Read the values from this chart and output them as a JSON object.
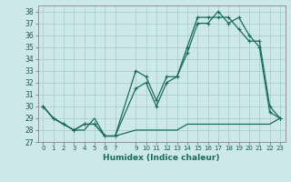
{
  "xlabel": "Humidex (Indice chaleur)",
  "background_color": "#cce8e8",
  "grid_color": "#aacece",
  "line_color": "#1a6b5a",
  "xlim": [
    -0.5,
    23.5
  ],
  "ylim": [
    27,
    38.5
  ],
  "yticks": [
    27,
    28,
    29,
    30,
    31,
    32,
    33,
    34,
    35,
    36,
    37,
    38
  ],
  "xticks": [
    0,
    1,
    2,
    3,
    4,
    5,
    6,
    7,
    9,
    10,
    11,
    12,
    13,
    14,
    15,
    16,
    17,
    18,
    19,
    20,
    21,
    22,
    23
  ],
  "xtick_labels": [
    "0",
    "1",
    "2",
    "3",
    "4",
    "5",
    "6",
    "7",
    "9",
    "10",
    "11",
    "12",
    "13",
    "14",
    "15",
    "16",
    "17",
    "18",
    "19",
    "20",
    "21",
    "22",
    "23"
  ],
  "series1_x": [
    0,
    1,
    2,
    3,
    4,
    5,
    6,
    7,
    9,
    10,
    11,
    12,
    13,
    14,
    15,
    16,
    17,
    18,
    19,
    20,
    21,
    22,
    23
  ],
  "series1_y": [
    30.0,
    29.0,
    28.5,
    28.0,
    28.0,
    29.0,
    27.5,
    27.5,
    28.0,
    28.0,
    28.0,
    28.0,
    28.0,
    28.5,
    28.5,
    28.5,
    28.5,
    28.5,
    28.5,
    28.5,
    28.5,
    28.5,
    29.0
  ],
  "series2_x": [
    0,
    1,
    2,
    3,
    4,
    5,
    6,
    7,
    9,
    10,
    11,
    12,
    13,
    14,
    15,
    16,
    17,
    18,
    19,
    20,
    21,
    22,
    23
  ],
  "series2_y": [
    30.0,
    29.0,
    28.5,
    28.0,
    28.5,
    28.5,
    27.5,
    27.5,
    31.5,
    32.0,
    30.0,
    32.0,
    32.5,
    34.5,
    37.0,
    37.0,
    38.0,
    37.0,
    37.5,
    36.0,
    35.0,
    29.5,
    29.0
  ],
  "series3_x": [
    0,
    1,
    2,
    3,
    4,
    5,
    6,
    7,
    9,
    10,
    11,
    12,
    13,
    14,
    15,
    16,
    17,
    18,
    19,
    20,
    21,
    22,
    23
  ],
  "series3_y": [
    30.0,
    29.0,
    28.5,
    28.0,
    28.5,
    28.5,
    27.5,
    27.5,
    33.0,
    32.5,
    30.5,
    32.5,
    32.5,
    35.0,
    37.5,
    37.5,
    37.5,
    37.5,
    36.5,
    35.5,
    35.5,
    30.0,
    29.0
  ]
}
